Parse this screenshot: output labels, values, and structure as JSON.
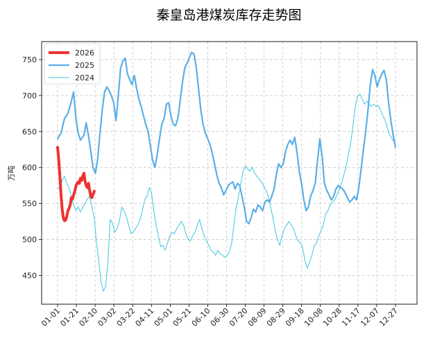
{
  "chart_data": {
    "type": "line",
    "title": "秦皇岛港煤炭库存走势图",
    "ylabel": "万吨",
    "xlabel": "",
    "ylim": [
      410,
      775
    ],
    "yticks": [
      450,
      500,
      550,
      600,
      650,
      700,
      750
    ],
    "categories": [
      "01-01",
      "01-21",
      "02-10",
      "03-02",
      "03-22",
      "04-11",
      "05-01",
      "05-21",
      "06-10",
      "06-30",
      "07-20",
      "08-09",
      "08-29",
      "09-18",
      "10-08",
      "10-28",
      "11-17",
      "12-07",
      "12-27"
    ],
    "grid": true,
    "legend_position": "top-left",
    "series": [
      {
        "name": "2026",
        "color": "#f03030",
        "width": 4,
        "points": [
          [
            0,
            628
          ],
          [
            1,
            610
          ],
          [
            2,
            588
          ],
          [
            3,
            562
          ],
          [
            4,
            542
          ],
          [
            5,
            530
          ],
          [
            6,
            526
          ],
          [
            7,
            527
          ],
          [
            8,
            532
          ],
          [
            9,
            540
          ],
          [
            10,
            543
          ],
          [
            11,
            548
          ],
          [
            12,
            558
          ],
          [
            13,
            556
          ],
          [
            14,
            562
          ],
          [
            15,
            567
          ],
          [
            16,
            574
          ],
          [
            17,
            578
          ],
          [
            18,
            580
          ],
          [
            19,
            578
          ],
          [
            20,
            585
          ],
          [
            21,
            582
          ],
          [
            22,
            588
          ],
          [
            23,
            592
          ],
          [
            24,
            581
          ],
          [
            25,
            575
          ],
          [
            26,
            572
          ],
          [
            27,
            578
          ],
          [
            28,
            568
          ],
          [
            29,
            560
          ],
          [
            30,
            558
          ],
          [
            31,
            563
          ],
          [
            32,
            567
          ]
        ]
      },
      {
        "name": "2025",
        "color": "#5aaee8",
        "width": 2.2,
        "points": [
          [
            0,
            640
          ],
          [
            3,
            648
          ],
          [
            6,
            668
          ],
          [
            9,
            675
          ],
          [
            12,
            692
          ],
          [
            14,
            705
          ],
          [
            16,
            668
          ],
          [
            18,
            648
          ],
          [
            20,
            638
          ],
          [
            23,
            645
          ],
          [
            25,
            662
          ],
          [
            27,
            644
          ],
          [
            29,
            622
          ],
          [
            31,
            600
          ],
          [
            33,
            592
          ],
          [
            35,
            612
          ],
          [
            37,
            648
          ],
          [
            39,
            680
          ],
          [
            41,
            705
          ],
          [
            43,
            712
          ],
          [
            45,
            707
          ],
          [
            47,
            700
          ],
          [
            49,
            690
          ],
          [
            51,
            665
          ],
          [
            53,
            700
          ],
          [
            55,
            738
          ],
          [
            57,
            748
          ],
          [
            59,
            752
          ],
          [
            61,
            730
          ],
          [
            63,
            722
          ],
          [
            65,
            715
          ],
          [
            67,
            728
          ],
          [
            69,
            710
          ],
          [
            71,
            695
          ],
          [
            73,
            685
          ],
          [
            75,
            672
          ],
          [
            77,
            660
          ],
          [
            79,
            650
          ],
          [
            81,
            630
          ],
          [
            83,
            610
          ],
          [
            85,
            600
          ],
          [
            87,
            618
          ],
          [
            89,
            640
          ],
          [
            91,
            660
          ],
          [
            93,
            668
          ],
          [
            95,
            688
          ],
          [
            97,
            690
          ],
          [
            99,
            672
          ],
          [
            101,
            660
          ],
          [
            103,
            658
          ],
          [
            105,
            668
          ],
          [
            107,
            692
          ],
          [
            109,
            718
          ],
          [
            111,
            738
          ],
          [
            113,
            745
          ],
          [
            115,
            752
          ],
          [
            117,
            760
          ],
          [
            119,
            758
          ],
          [
            121,
            740
          ],
          [
            123,
            710
          ],
          [
            125,
            680
          ],
          [
            127,
            660
          ],
          [
            129,
            648
          ],
          [
            131,
            640
          ],
          [
            133,
            632
          ],
          [
            135,
            620
          ],
          [
            137,
            605
          ],
          [
            139,
            590
          ],
          [
            141,
            578
          ],
          [
            143,
            572
          ],
          [
            145,
            562
          ],
          [
            147,
            568
          ],
          [
            149,
            575
          ],
          [
            151,
            578
          ],
          [
            153,
            580
          ],
          [
            155,
            570
          ],
          [
            157,
            578
          ],
          [
            159,
            575
          ],
          [
            161,
            560
          ],
          [
            163,
            545
          ],
          [
            165,
            525
          ],
          [
            167,
            522
          ],
          [
            169,
            530
          ],
          [
            171,
            542
          ],
          [
            173,
            538
          ],
          [
            175,
            548
          ],
          [
            177,
            545
          ],
          [
            179,
            540
          ],
          [
            181,
            552
          ],
          [
            183,
            555
          ],
          [
            185,
            552
          ],
          [
            187,
            560
          ],
          [
            189,
            570
          ],
          [
            191,
            590
          ],
          [
            193,
            605
          ],
          [
            195,
            600
          ],
          [
            197,
            605
          ],
          [
            199,
            622
          ],
          [
            201,
            632
          ],
          [
            203,
            638
          ],
          [
            205,
            632
          ],
          [
            207,
            642
          ],
          [
            209,
            622
          ],
          [
            211,
            595
          ],
          [
            213,
            578
          ],
          [
            215,
            555
          ],
          [
            217,
            540
          ],
          [
            219,
            545
          ],
          [
            221,
            560
          ],
          [
            223,
            568
          ],
          [
            225,
            578
          ],
          [
            227,
            610
          ],
          [
            229,
            640
          ],
          [
            231,
            615
          ],
          [
            233,
            578
          ],
          [
            235,
            568
          ],
          [
            237,
            562
          ],
          [
            239,
            555
          ],
          [
            241,
            560
          ],
          [
            243,
            570
          ],
          [
            245,
            575
          ],
          [
            247,
            572
          ],
          [
            249,
            570
          ],
          [
            251,
            565
          ],
          [
            253,
            558
          ],
          [
            255,
            552
          ],
          [
            257,
            555
          ],
          [
            259,
            560
          ],
          [
            261,
            555
          ],
          [
            263,
            572
          ],
          [
            265,
            598
          ],
          [
            267,
            625
          ],
          [
            269,
            650
          ],
          [
            271,
            680
          ],
          [
            273,
            715
          ],
          [
            275,
            736
          ],
          [
            277,
            728
          ],
          [
            279,
            712
          ],
          [
            281,
            722
          ],
          [
            283,
            730
          ],
          [
            285,
            735
          ],
          [
            287,
            722
          ],
          [
            289,
            690
          ],
          [
            291,
            665
          ],
          [
            293,
            645
          ],
          [
            295,
            628
          ]
        ]
      },
      {
        "name": "2024",
        "color": "#3cc6dc",
        "width": 1,
        "points": [
          [
            0,
            572
          ],
          [
            2,
            570
          ],
          [
            4,
            582
          ],
          [
            6,
            588
          ],
          [
            8,
            578
          ],
          [
            10,
            572
          ],
          [
            12,
            560
          ],
          [
            14,
            548
          ],
          [
            16,
            540
          ],
          [
            18,
            545
          ],
          [
            20,
            538
          ],
          [
            22,
            545
          ],
          [
            24,
            550
          ],
          [
            26,
            556
          ],
          [
            28,
            560
          ],
          [
            30,
            545
          ],
          [
            32,
            530
          ],
          [
            34,
            495
          ],
          [
            36,
            470
          ],
          [
            38,
            440
          ],
          [
            40,
            428
          ],
          [
            42,
            435
          ],
          [
            44,
            470
          ],
          [
            46,
            528
          ],
          [
            48,
            522
          ],
          [
            50,
            510
          ],
          [
            52,
            515
          ],
          [
            54,
            525
          ],
          [
            56,
            545
          ],
          [
            58,
            540
          ],
          [
            60,
            532
          ],
          [
            62,
            520
          ],
          [
            64,
            508
          ],
          [
            66,
            510
          ],
          [
            68,
            515
          ],
          [
            70,
            520
          ],
          [
            72,
            528
          ],
          [
            74,
            540
          ],
          [
            76,
            555
          ],
          [
            78,
            560
          ],
          [
            80,
            572
          ],
          [
            82,
            565
          ],
          [
            84,
            540
          ],
          [
            86,
            520
          ],
          [
            88,
            505
          ],
          [
            90,
            490
          ],
          [
            92,
            492
          ],
          [
            94,
            485
          ],
          [
            96,
            495
          ],
          [
            98,
            505
          ],
          [
            100,
            510
          ],
          [
            102,
            508
          ],
          [
            104,
            515
          ],
          [
            106,
            520
          ],
          [
            108,
            525
          ],
          [
            110,
            520
          ],
          [
            112,
            508
          ],
          [
            114,
            500
          ],
          [
            116,
            498
          ],
          [
            118,
            505
          ],
          [
            120,
            510
          ],
          [
            122,
            520
          ],
          [
            124,
            528
          ],
          [
            126,
            515
          ],
          [
            128,
            505
          ],
          [
            130,
            498
          ],
          [
            132,
            492
          ],
          [
            134,
            485
          ],
          [
            136,
            482
          ],
          [
            138,
            478
          ],
          [
            140,
            485
          ],
          [
            142,
            480
          ],
          [
            144,
            478
          ],
          [
            146,
            475
          ],
          [
            148,
            478
          ],
          [
            150,
            482
          ],
          [
            152,
            495
          ],
          [
            154,
            520
          ],
          [
            156,
            545
          ],
          [
            158,
            560
          ],
          [
            160,
            578
          ],
          [
            162,
            595
          ],
          [
            164,
            602
          ],
          [
            166,
            598
          ],
          [
            168,
            595
          ],
          [
            170,
            600
          ],
          [
            172,
            592
          ],
          [
            174,
            588
          ],
          [
            176,
            584
          ],
          [
            178,
            580
          ],
          [
            180,
            574
          ],
          [
            182,
            568
          ],
          [
            184,
            560
          ],
          [
            186,
            545
          ],
          [
            188,
            530
          ],
          [
            190,
            512
          ],
          [
            192,
            500
          ],
          [
            194,
            492
          ],
          [
            196,
            505
          ],
          [
            198,
            515
          ],
          [
            200,
            520
          ],
          [
            202,
            525
          ],
          [
            204,
            520
          ],
          [
            206,
            515
          ],
          [
            208,
            505
          ],
          [
            210,
            498
          ],
          [
            212,
            495
          ],
          [
            214,
            488
          ],
          [
            216,
            470
          ],
          [
            218,
            460
          ],
          [
            220,
            468
          ],
          [
            222,
            478
          ],
          [
            224,
            490
          ],
          [
            226,
            495
          ],
          [
            228,
            505
          ],
          [
            230,
            512
          ],
          [
            232,
            520
          ],
          [
            234,
            535
          ],
          [
            236,
            540
          ],
          [
            238,
            548
          ],
          [
            240,
            552
          ],
          [
            242,
            555
          ],
          [
            244,
            562
          ],
          [
            246,
            570
          ],
          [
            248,
            578
          ],
          [
            250,
            590
          ],
          [
            252,
            602
          ],
          [
            254,
            618
          ],
          [
            256,
            635
          ],
          [
            258,
            660
          ],
          [
            260,
            685
          ],
          [
            262,
            700
          ],
          [
            264,
            702
          ],
          [
            266,
            695
          ],
          [
            268,
            688
          ],
          [
            270,
            692
          ],
          [
            272,
            688
          ],
          [
            274,
            685
          ],
          [
            276,
            688
          ],
          [
            278,
            685
          ],
          [
            280,
            686
          ],
          [
            282,
            680
          ],
          [
            284,
            672
          ],
          [
            286,
            665
          ],
          [
            288,
            655
          ],
          [
            290,
            645
          ],
          [
            292,
            640
          ],
          [
            294,
            635
          ],
          [
            295,
            632
          ]
        ]
      }
    ]
  }
}
